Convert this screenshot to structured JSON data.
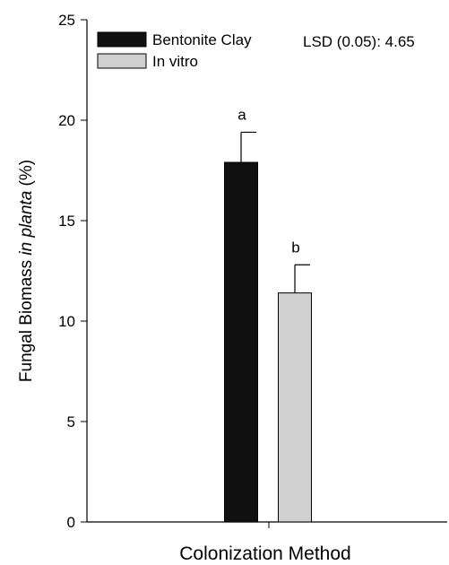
{
  "chart_data": {
    "type": "bar",
    "categories": [
      ""
    ],
    "series": [
      {
        "name": "Bentonite Clay",
        "values": [
          17.9
        ],
        "error": [
          1.5
        ],
        "letter": "a",
        "color": "#111111"
      },
      {
        "name": "In vitro",
        "values": [
          11.4
        ],
        "error": [
          1.4
        ],
        "letter": "b",
        "color": "#d0d0d0"
      }
    ],
    "xlabel": "Colonization Method",
    "ylabel_pre": "Fungal Biomass ",
    "ylabel_italic": "in planta",
    "ylabel_post": " (%)",
    "ylim": [
      0,
      25
    ],
    "yticks": [
      0,
      5,
      10,
      15,
      20,
      25
    ],
    "annotation": "LSD (0.05): 4.65",
    "legend_position": "top-left",
    "grid": false
  }
}
